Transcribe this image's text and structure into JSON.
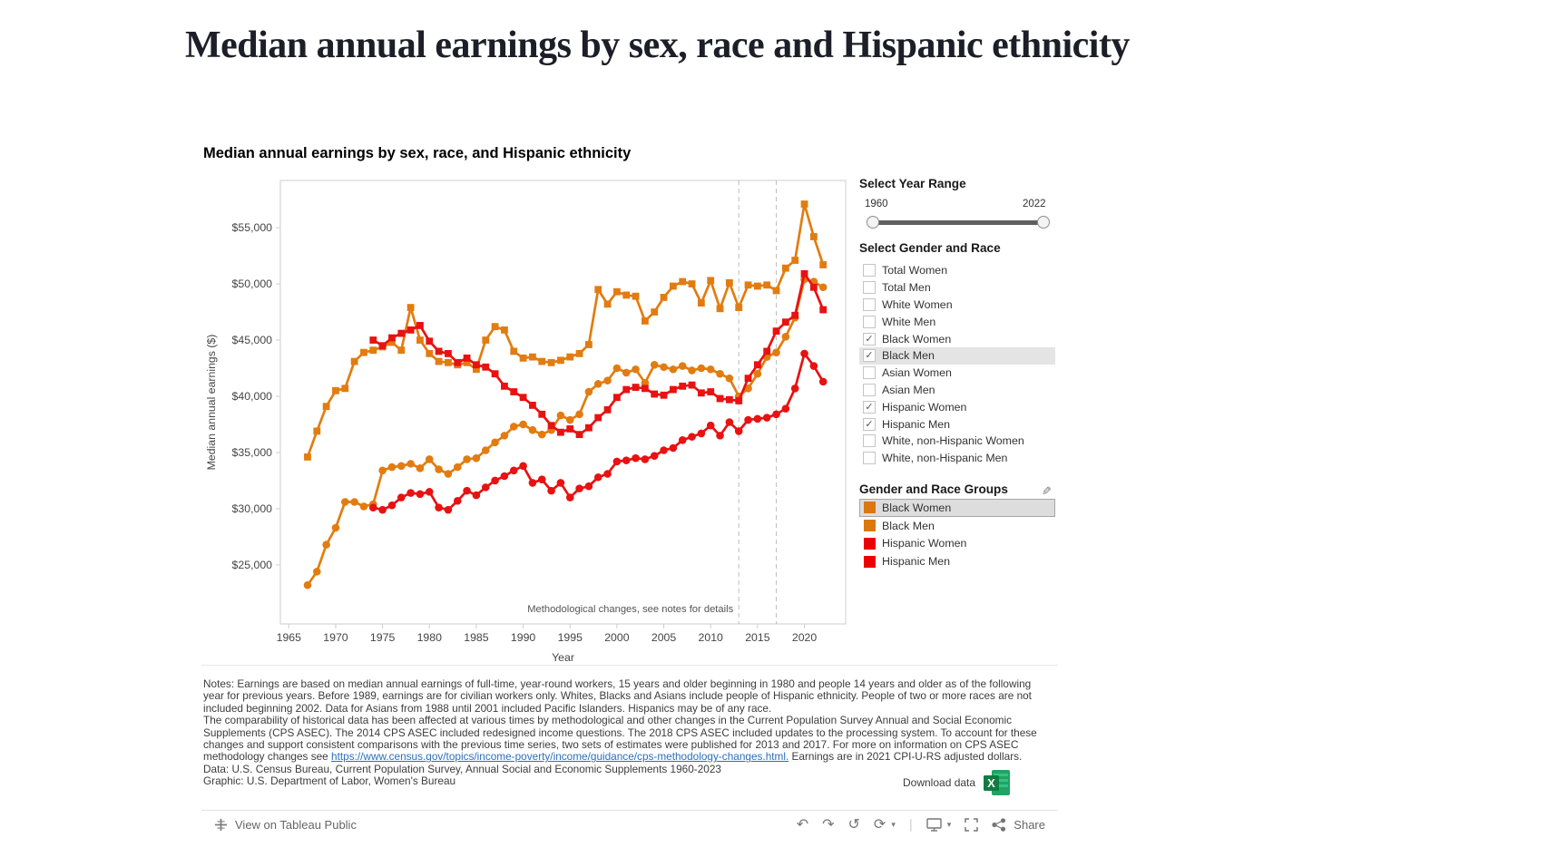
{
  "page": {
    "title": "Median annual earnings by sex, race and Hispanic ethnicity"
  },
  "viz": {
    "subtitle": "Median annual earnings by sex, race, and Hispanic ethnicity"
  },
  "chart_data": {
    "type": "line",
    "title": "Median annual earnings by sex, race, and Hispanic ethnicity",
    "xlabel": "Year",
    "ylabel": "Median annual earnings ($)",
    "grid": false,
    "legend_position": "right-panel",
    "x_range": [
      1964.1,
      2024.4
    ],
    "y_range": [
      19750,
      59200
    ],
    "x_ticks": {
      "values": [
        1965,
        1970,
        1975,
        1980,
        1985,
        1990,
        1995,
        2000,
        2005,
        2010,
        2015,
        2020
      ],
      "labels": [
        "1965",
        "1970",
        "1975",
        "1980",
        "1985",
        "1990",
        "1995",
        "2000",
        "2005",
        "2010",
        "2015",
        "2020"
      ]
    },
    "y_ticks": {
      "values": [
        25000,
        30000,
        35000,
        40000,
        45000,
        50000,
        55000
      ],
      "labels": [
        "$25,000",
        "$30,000",
        "$35,000",
        "$40,000",
        "$45,000",
        "$50,000",
        "$55,000"
      ]
    },
    "reference_lines": [
      {
        "year": 2013
      },
      {
        "year": 2017
      }
    ],
    "annotation": {
      "text": "Methodological changes, see notes for details",
      "year": 2013,
      "value": 20800,
      "align": "right"
    },
    "series": [
      {
        "name": "Black Men",
        "color": "#e27c10",
        "marker": "square",
        "start_year": 1967,
        "values": [
          34600,
          36900,
          39100,
          40500,
          40700,
          43100,
          43900,
          44100,
          44400,
          44800,
          44100,
          47900,
          45000,
          43800,
          43100,
          43000,
          42800,
          43000,
          42400,
          45000,
          46200,
          45900,
          44000,
          43400,
          43500,
          43100,
          43000,
          43200,
          43500,
          43800,
          44600,
          49500,
          48200,
          49300,
          49000,
          48900,
          46700,
          47500,
          48800,
          49800,
          50200,
          50000,
          48300,
          50300,
          47800,
          50100,
          47900,
          49900,
          49800,
          49900,
          49400,
          51400,
          52100,
          57100,
          54200,
          51700
        ]
      },
      {
        "name": "Black Women",
        "color": "#e27c10",
        "marker": "circle",
        "start_year": 1967,
        "values": [
          23200,
          24400,
          26800,
          28300,
          30600,
          30600,
          30200,
          30400,
          33400,
          33700,
          33800,
          34000,
          33600,
          34400,
          33500,
          33100,
          33700,
          34400,
          34500,
          35200,
          35900,
          36500,
          37300,
          37500,
          37000,
          36600,
          37000,
          38300,
          37900,
          38400,
          40400,
          41100,
          41400,
          42500,
          42100,
          42400,
          41200,
          42800,
          42600,
          42400,
          42700,
          42300,
          42500,
          42400,
          42000,
          41600,
          40000,
          40700,
          42000,
          43500,
          43900,
          45300,
          47000,
          50400,
          50200,
          49700
        ]
      },
      {
        "name": "Hispanic Women",
        "color": "#e91111",
        "marker": "circle",
        "start_year": 1974,
        "values": [
          30100,
          29900,
          30300,
          31000,
          31400,
          31300,
          31500,
          30100,
          29900,
          30700,
          31600,
          31200,
          31900,
          32500,
          32900,
          33400,
          33800,
          32300,
          32600,
          31600,
          32300,
          31000,
          31800,
          32000,
          32800,
          33100,
          34200,
          34300,
          34500,
          34400,
          34700,
          35200,
          35400,
          36100,
          36400,
          36700,
          37400,
          36500,
          37700,
          36900,
          37900,
          38000,
          38100,
          38400,
          38900,
          40700,
          43800,
          42700,
          41300
        ]
      },
      {
        "name": "Hispanic Men",
        "color": "#e91111",
        "marker": "square",
        "start_year": 1974,
        "values": [
          45000,
          44500,
          45200,
          45600,
          45900,
          46300,
          44900,
          44000,
          43800,
          43000,
          43400,
          42800,
          42600,
          42000,
          40900,
          40400,
          39900,
          39200,
          38400,
          37400,
          36800,
          37100,
          36600,
          37200,
          38100,
          38800,
          39900,
          40600,
          40800,
          40700,
          40200,
          40100,
          40600,
          40900,
          41000,
          40300,
          40400,
          39800,
          39700,
          39600,
          41600,
          42800,
          44000,
          45800,
          46600,
          47200,
          50900,
          49700,
          47700
        ]
      }
    ]
  },
  "controls": {
    "year_range": {
      "title": "Select Year Range",
      "min_label": "1960",
      "max_label": "2022"
    },
    "gender_race": {
      "title": "Select Gender and Race",
      "options": [
        {
          "label": "Total Women",
          "checked": false
        },
        {
          "label": "Total Men",
          "checked": false
        },
        {
          "label": "White Women",
          "checked": false
        },
        {
          "label": "White Men",
          "checked": false
        },
        {
          "label": "Black Women",
          "checked": true
        },
        {
          "label": "Black Men",
          "checked": true,
          "highlighted": true
        },
        {
          "label": "Asian Women",
          "checked": false
        },
        {
          "label": "Asian Men",
          "checked": false
        },
        {
          "label": "Hispanic Women",
          "checked": true
        },
        {
          "label": "Hispanic Men",
          "checked": true
        },
        {
          "label": "White, non-Hispanic Women",
          "checked": false
        },
        {
          "label": "White, non-Hispanic Men",
          "checked": false
        }
      ]
    }
  },
  "legend": {
    "title": "Gender and Race Groups",
    "items": [
      {
        "label": "Black Women",
        "color": "#db770e",
        "selected": true
      },
      {
        "label": "Black Men",
        "color": "#db770e"
      },
      {
        "label": "Hispanic Women",
        "color": "#ee0000"
      },
      {
        "label": "Hispanic Men",
        "color": "#ee0000"
      }
    ]
  },
  "notes": {
    "p1": "Notes: Earnings are based on median annual earnings of full-time, year-round workers, 15 years and older beginning in 1980 and people 14 years and older as of the following year for previous years. Before 1989, earnings are for civilian workers only. Whites, Blacks and Asians include people of Hispanic ethnicity. People of two or more races are not included beginning 2002. Data for Asians from 1988 until 2001 included Pacific Islanders. Hispanics may be of any race.",
    "p2_pre": "The comparability of historical data has been affected at various times by methodological and other changes in the Current Population Survey Annual and Social Economic Supplements (CPS ASEC). The 2014 CPS ASEC included redesigned income questions. The 2018 CPS ASEC included updates to the processing system. To account for these changes and support consistent comparisons with the previous time series, two sets of estimates were published for 2013 and 2017. For more on information on CPS ASEC methodology changes see ",
    "p2_link": "https://www.census.gov/topics/income-poverty/income/guidance/cps-methodology-changes.html.",
    "p2_post": " Earnings are in 2021 CPI-U-RS adjusted dollars.",
    "data_line": "Data: U.S. Census Bureau, Current Population Survey, Annual Social and Economic Supplements 1960-2023",
    "graphic_line": "Graphic: U.S. Department of Labor, Women's Bureau"
  },
  "download": {
    "label": "Download data"
  },
  "toolbar": {
    "view_label": "View on Tableau Public",
    "share_label": "Share"
  }
}
